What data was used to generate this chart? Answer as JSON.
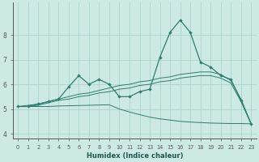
{
  "xlabel": "Humidex (Indice chaleur)",
  "background_color": "#cce9e4",
  "grid_color": "#aad4cc",
  "line_color": "#2e7d6e",
  "xlim": [
    -0.5,
    23.5
  ],
  "ylim": [
    3.8,
    9.3
  ],
  "x_ticks": [
    0,
    1,
    2,
    3,
    4,
    5,
    6,
    7,
    8,
    9,
    10,
    11,
    12,
    13,
    14,
    15,
    16,
    17,
    18,
    19,
    20,
    21,
    22,
    23
  ],
  "y_ticks": [
    4,
    5,
    6,
    7,
    8
  ],
  "main_series": [
    5.1,
    5.1,
    5.2,
    5.3,
    5.4,
    5.9,
    6.35,
    6.0,
    6.2,
    6.0,
    5.5,
    5.5,
    5.7,
    5.8,
    7.1,
    8.1,
    8.6,
    8.1,
    6.9,
    6.7,
    6.35,
    6.2,
    5.35,
    4.4
  ],
  "trend1": [
    5.1,
    5.15,
    5.2,
    5.3,
    5.4,
    5.5,
    5.6,
    5.65,
    5.75,
    5.85,
    5.95,
    6.0,
    6.1,
    6.15,
    6.25,
    6.3,
    6.4,
    6.45,
    6.5,
    6.5,
    6.4,
    6.15,
    5.4,
    4.4
  ],
  "trend2": [
    5.1,
    5.1,
    5.15,
    5.25,
    5.35,
    5.4,
    5.5,
    5.55,
    5.65,
    5.7,
    5.8,
    5.85,
    5.95,
    6.0,
    6.1,
    6.15,
    6.25,
    6.3,
    6.35,
    6.35,
    6.25,
    6.05,
    5.3,
    4.4
  ],
  "trend3": [
    5.1,
    5.1,
    5.1,
    5.1,
    5.12,
    5.13,
    5.14,
    5.15,
    5.16,
    5.17,
    5.0,
    4.88,
    4.77,
    4.67,
    4.6,
    4.55,
    4.5,
    4.47,
    4.45,
    4.43,
    4.42,
    4.41,
    4.41,
    4.4
  ]
}
